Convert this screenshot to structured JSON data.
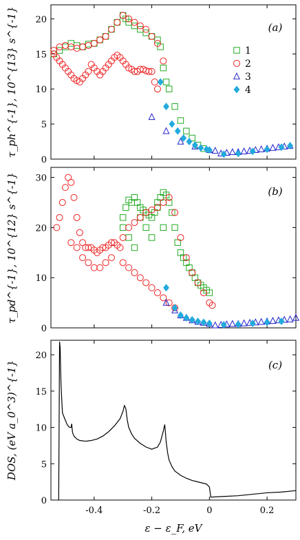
{
  "chart_data": [
    {
      "type": "scatter",
      "panel_label": "(a)",
      "ylabel": "τ_ph^{-1}, 10^{13} s^{-1}",
      "xlim": [
        -0.55,
        0.3
      ],
      "ylim": [
        0,
        22
      ],
      "yticks": [
        "0",
        "5",
        "10",
        "15",
        "20"
      ],
      "legend": {
        "placement": "right",
        "entries": [
          "1",
          "2",
          "3",
          "4"
        ]
      },
      "series": [
        {
          "name": "1",
          "marker": "square",
          "color": "#22aa22",
          "x": [
            -0.54,
            -0.52,
            -0.5,
            -0.48,
            -0.46,
            -0.44,
            -0.42,
            -0.4,
            -0.38,
            -0.36,
            -0.34,
            -0.32,
            -0.3,
            -0.29,
            -0.28,
            -0.26,
            -0.24,
            -0.22,
            -0.2,
            -0.18,
            -0.17,
            -0.16,
            -0.15,
            -0.14,
            -0.12,
            -0.1,
            -0.08,
            -0.06,
            -0.04,
            -0.02
          ],
          "y": [
            15,
            15.5,
            16,
            16.5,
            16.2,
            16,
            16.4,
            16.5,
            17,
            17.5,
            18.5,
            19.5,
            20.5,
            20,
            19.5,
            19,
            18.5,
            18,
            17.5,
            17,
            16,
            13,
            11,
            10,
            7.5,
            5.5,
            4,
            3,
            2,
            1.5
          ]
        },
        {
          "name": "2",
          "marker": "circle",
          "color": "#ee2222",
          "x": [
            -0.54,
            -0.53,
            -0.52,
            -0.51,
            -0.5,
            -0.49,
            -0.48,
            -0.47,
            -0.46,
            -0.45,
            -0.44,
            -0.43,
            -0.42,
            -0.41,
            -0.4,
            -0.39,
            -0.38,
            -0.37,
            -0.36,
            -0.35,
            -0.34,
            -0.33,
            -0.32,
            -0.31,
            -0.3,
            -0.29,
            -0.28,
            -0.27,
            -0.26,
            -0.25,
            -0.24,
            -0.23,
            -0.22,
            -0.21,
            -0.2,
            -0.19,
            -0.18,
            -0.54,
            -0.52,
            -0.5,
            -0.48,
            -0.46,
            -0.44,
            -0.42,
            -0.4,
            -0.38,
            -0.36,
            -0.34,
            -0.32,
            -0.3,
            -0.28,
            -0.26,
            -0.24,
            -0.22,
            -0.2,
            -0.18,
            -0.16
          ],
          "y": [
            15,
            14.5,
            14,
            13.5,
            13,
            12.5,
            12,
            11.5,
            11.2,
            11,
            11.5,
            12,
            12.5,
            13.5,
            13,
            12.5,
            12,
            12.5,
            13,
            13.5,
            14,
            14.5,
            14.8,
            14.5,
            14,
            13.5,
            13,
            12.8,
            12.5,
            12.5,
            12.8,
            12.8,
            12.6,
            12.5,
            12.5,
            11,
            10,
            15.5,
            16,
            16.2,
            16,
            15.8,
            16,
            16.2,
            16.5,
            17,
            17.5,
            18.5,
            19.5,
            20.5,
            20,
            19.5,
            19,
            18.5,
            17.5,
            16.5,
            14
          ]
        },
        {
          "name": "3",
          "marker": "triangle",
          "color": "#2222cc",
          "x": [
            -0.2,
            -0.15,
            -0.1,
            -0.05,
            0.0,
            0.02,
            0.04,
            0.06,
            0.08,
            0.1,
            0.12,
            0.14,
            0.16,
            0.18,
            0.2,
            0.22,
            0.24,
            0.26,
            0.28
          ],
          "y": [
            6,
            4,
            2.5,
            1.8,
            1.3,
            1.2,
            0.8,
            0.9,
            1.0,
            1.0,
            1.1,
            1.2,
            1.3,
            1.4,
            1.5,
            1.6,
            1.7,
            1.8,
            1.9
          ]
        },
        {
          "name": "4",
          "marker": "diamond",
          "color": "#22aadd",
          "x": [
            -0.17,
            -0.15,
            -0.13,
            -0.11,
            -0.09,
            -0.07,
            -0.05,
            -0.03,
            -0.01,
            0.0,
            0.05,
            0.1,
            0.15,
            0.2,
            0.25,
            0.28
          ],
          "y": [
            11,
            7.5,
            5,
            4,
            3,
            2.5,
            2,
            1.6,
            1.4,
            1.3,
            0.7,
            0.8,
            1.1,
            1.4,
            1.7,
            1.9
          ]
        }
      ]
    },
    {
      "type": "scatter",
      "panel_label": "(b)",
      "ylabel": "τ_pd^{-1}, 10^{12} s^{-1}",
      "xlim": [
        -0.55,
        0.3
      ],
      "ylim": [
        0,
        32
      ],
      "yticks": [
        "0",
        "10",
        "20",
        "30"
      ],
      "series": [
        {
          "name": "1",
          "marker": "square",
          "color": "#22aa22",
          "x": [
            -0.3,
            -0.29,
            -0.28,
            -0.27,
            -0.26,
            -0.25,
            -0.24,
            -0.23,
            -0.22,
            -0.21,
            -0.2,
            -0.19,
            -0.18,
            -0.17,
            -0.16,
            -0.15,
            -0.14,
            -0.13,
            -0.12,
            -0.11,
            -0.1,
            -0.09,
            -0.08,
            -0.07,
            -0.06,
            -0.05,
            -0.04,
            -0.03,
            -0.02,
            -0.01,
            0.0,
            -0.3,
            -0.28,
            -0.26,
            -0.24,
            -0.22,
            -0.2,
            -0.18,
            -0.16
          ],
          "y": [
            22,
            24,
            25.5,
            25,
            26,
            25,
            24,
            23.5,
            23,
            22.5,
            22,
            23,
            25,
            26,
            27,
            26.5,
            25,
            23,
            20,
            17,
            15,
            14,
            13,
            12,
            11,
            10,
            9,
            8.5,
            8,
            7.5,
            7,
            20,
            18,
            16,
            22,
            20,
            18,
            24,
            20
          ]
        },
        {
          "name": "2",
          "marker": "circle",
          "color": "#ee2222",
          "x": [
            -0.53,
            -0.52,
            -0.51,
            -0.5,
            -0.49,
            -0.48,
            -0.47,
            -0.46,
            -0.45,
            -0.44,
            -0.43,
            -0.42,
            -0.41,
            -0.4,
            -0.39,
            -0.38,
            -0.37,
            -0.36,
            -0.35,
            -0.34,
            -0.33,
            -0.32,
            -0.31,
            -0.3,
            -0.28,
            -0.26,
            -0.24,
            -0.22,
            -0.2,
            -0.18,
            -0.16,
            -0.14,
            -0.12,
            -0.1,
            -0.08,
            -0.06,
            -0.04,
            -0.02,
            0.0,
            0.01,
            -0.48,
            -0.46,
            -0.44,
            -0.42,
            -0.4,
            -0.38,
            -0.36,
            -0.34,
            -0.3,
            -0.28,
            -0.26,
            -0.24,
            -0.22,
            -0.2,
            -0.18,
            -0.16,
            -0.14,
            -0.12
          ],
          "y": [
            20,
            22,
            25,
            28,
            30,
            29,
            26,
            22,
            19,
            17,
            16,
            16,
            16,
            15.5,
            15,
            15.5,
            16,
            16,
            16.5,
            17,
            17,
            16.5,
            16,
            18,
            20,
            21,
            22,
            23,
            23.5,
            24,
            25,
            26,
            23,
            18,
            14,
            11,
            9,
            7,
            5,
            4.5,
            17,
            16,
            14,
            13,
            12,
            12,
            13,
            14,
            13,
            12,
            11,
            10,
            9,
            8,
            7,
            6,
            5,
            4
          ]
        },
        {
          "name": "3",
          "marker": "triangle",
          "color": "#2222cc",
          "x": [
            -0.15,
            -0.12,
            -0.1,
            -0.08,
            -0.06,
            -0.04,
            -0.02,
            0.0,
            0.02,
            0.04,
            0.06,
            0.08,
            0.1,
            0.12,
            0.14,
            0.16,
            0.18,
            0.2,
            0.22,
            0.24,
            0.26,
            0.28,
            0.3
          ],
          "y": [
            5,
            3.5,
            2.5,
            2,
            1.5,
            1.2,
            1.0,
            0.8,
            0.5,
            0.6,
            0.7,
            0.8,
            0.8,
            0.9,
            1.0,
            1.1,
            1.2,
            1.3,
            1.4,
            1.5,
            1.6,
            1.7,
            2.0
          ]
        },
        {
          "name": "4",
          "marker": "diamond",
          "color": "#22aadd",
          "x": [
            -0.15,
            -0.12,
            -0.1,
            -0.08,
            -0.06,
            -0.04,
            -0.02,
            0.0,
            0.05,
            0.1,
            0.15,
            0.2,
            0.25
          ],
          "y": [
            8,
            4,
            2.5,
            2,
            1.6,
            1.3,
            1.1,
            0.9,
            0.6,
            0.7,
            0.9,
            1.1,
            1.3
          ]
        }
      ]
    },
    {
      "type": "line",
      "panel_label": "(c)",
      "ylabel": "DOS, (eV a_0^3)^{-1}",
      "xlabel": "ε − ε_F, eV",
      "xlim": [
        -0.55,
        0.3
      ],
      "ylim": [
        0,
        22
      ],
      "yticks": [
        "0",
        "5",
        "10",
        "15",
        "20"
      ],
      "xticks": [
        "-0.4",
        "-0.2",
        "0",
        "0.2"
      ],
      "series": [
        {
          "name": "DOS",
          "color": "#000000",
          "x": [
            -0.523,
            -0.52,
            -0.518,
            -0.515,
            -0.512,
            -0.51,
            -0.505,
            -0.5,
            -0.495,
            -0.49,
            -0.485,
            -0.48,
            -0.478,
            -0.475,
            -0.47,
            -0.46,
            -0.45,
            -0.43,
            -0.41,
            -0.39,
            -0.37,
            -0.35,
            -0.33,
            -0.31,
            -0.3,
            -0.295,
            -0.29,
            -0.285,
            -0.28,
            -0.27,
            -0.26,
            -0.24,
            -0.22,
            -0.2,
            -0.18,
            -0.17,
            -0.16,
            -0.155,
            -0.15,
            -0.145,
            -0.14,
            -0.13,
            -0.12,
            -0.1,
            -0.08,
            -0.06,
            -0.04,
            -0.02,
            -0.01,
            0.0,
            0.003,
            0.005,
            0.05,
            0.1,
            0.15,
            0.2,
            0.25,
            0.3
          ],
          "y": [
            0,
            21.8,
            21.0,
            16.0,
            13.5,
            12.0,
            11.5,
            11.0,
            10.5,
            10.2,
            10.0,
            10.0,
            10.5,
            9.3,
            8.8,
            8.4,
            8.2,
            8.1,
            8.2,
            8.4,
            8.8,
            9.4,
            10.2,
            11.2,
            12.2,
            13.0,
            12.6,
            11.0,
            10.0,
            9.1,
            8.5,
            7.8,
            7.3,
            7.0,
            7.3,
            8.0,
            9.5,
            10.4,
            8.0,
            6.5,
            5.5,
            4.6,
            4.0,
            3.4,
            3.0,
            2.7,
            2.5,
            2.3,
            2.2,
            1.8,
            0.9,
            0.4,
            0.5,
            0.6,
            0.8,
            1.0,
            1.1,
            1.3
          ]
        }
      ]
    }
  ]
}
